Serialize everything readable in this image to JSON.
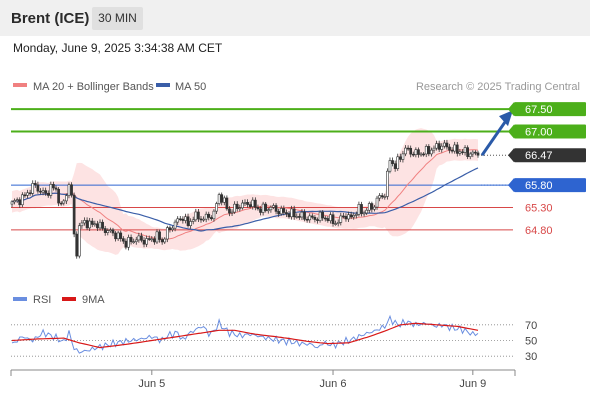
{
  "header": {
    "instrument": "Brent (ICE)",
    "timeframe": "30 MIN",
    "timestamp": "Monday, June 9, 2025 3:34:38 AM CET"
  },
  "colors": {
    "resistance": "#4caf1a",
    "pivot": "#2e64d0",
    "support": "#d84848",
    "current": "#333333",
    "ma50": "#3a5ea8",
    "ma20": "#f08080",
    "bollinger_fill": "#fde3e3",
    "rsi": "#6a8ee0",
    "rsi_ma": "#d81818",
    "up_candle": "#ffffff",
    "down_candle": "#333333",
    "arrow": "#2a5aa8"
  },
  "chart_data": [
    {
      "type": "candlestick",
      "legend": [
        {
          "label": "MA 20 + Bollinger Bands",
          "color": "#f08080"
        },
        {
          "label": "MA 50",
          "color": "#3a5ea8"
        }
      ],
      "legend_position": "top-left",
      "credit": "Research © 2025 Trading Central",
      "ylim": [
        63.5,
        67.75
      ],
      "x_ticks": [
        "Jun 5",
        "Jun 6",
        "Jun 9"
      ],
      "grid": false,
      "current_price": "66.47",
      "levels": [
        {
          "value": 67.5,
          "label": "67.50",
          "role": "resistance"
        },
        {
          "value": 67.0,
          "label": "67.00",
          "role": "resistance"
        },
        {
          "value": 65.8,
          "label": "65.80",
          "role": "pivot"
        },
        {
          "value": 65.3,
          "label": "65.30",
          "role": "support"
        },
        {
          "value": 64.8,
          "label": "64.80",
          "role": "support"
        }
      ],
      "forecast": {
        "from": 66.47,
        "to": 67.5
      },
      "anchors": [
        [
          0,
          65.4
        ],
        [
          4,
          65.5
        ],
        [
          7,
          65.7
        ],
        [
          9,
          65.8
        ],
        [
          11,
          65.65
        ],
        [
          13,
          65.6
        ],
        [
          15,
          65.75
        ],
        [
          17,
          65.7
        ],
        [
          19,
          65.3
        ],
        [
          21,
          65.6
        ],
        [
          22,
          65.85
        ],
        [
          23,
          65.5
        ],
        [
          24,
          64.7
        ],
        [
          25,
          64.3
        ],
        [
          26,
          64.85
        ],
        [
          28,
          65.0
        ],
        [
          30,
          64.9
        ],
        [
          32,
          64.95
        ],
        [
          36,
          64.8
        ],
        [
          40,
          64.7
        ],
        [
          44,
          64.5
        ],
        [
          48,
          64.6
        ],
        [
          52,
          64.55
        ],
        [
          56,
          64.65
        ],
        [
          58,
          64.55
        ],
        [
          60,
          64.75
        ],
        [
          62,
          64.9
        ],
        [
          64,
          65.0
        ],
        [
          66,
          65.1
        ],
        [
          68,
          64.9
        ],
        [
          70,
          65.1
        ],
        [
          74,
          65.05
        ],
        [
          78,
          65.15
        ],
        [
          80,
          65.6
        ],
        [
          82,
          65.4
        ],
        [
          84,
          65.2
        ],
        [
          88,
          65.35
        ],
        [
          92,
          65.4
        ],
        [
          96,
          65.25
        ],
        [
          100,
          65.3
        ],
        [
          104,
          65.2
        ],
        [
          108,
          65.15
        ],
        [
          112,
          65.1
        ],
        [
          116,
          65.05
        ],
        [
          120,
          65.1
        ],
        [
          124,
          65.0
        ],
        [
          126,
          64.95
        ],
        [
          128,
          65.15
        ],
        [
          130,
          65.05
        ],
        [
          132,
          65.15
        ],
        [
          134,
          65.25
        ],
        [
          136,
          65.2
        ],
        [
          138,
          65.3
        ],
        [
          140,
          65.35
        ],
        [
          142,
          65.55
        ],
        [
          144,
          65.6
        ],
        [
          146,
          66.4
        ],
        [
          148,
          66.2
        ],
        [
          150,
          66.45
        ],
        [
          152,
          66.6
        ],
        [
          156,
          66.5
        ],
        [
          160,
          66.55
        ],
        [
          164,
          66.65
        ],
        [
          166,
          66.7
        ],
        [
          170,
          66.6
        ],
        [
          174,
          66.55
        ],
        [
          178,
          66.5
        ],
        [
          180,
          66.47
        ]
      ]
    },
    {
      "type": "line",
      "legend": [
        {
          "label": "RSI",
          "color": "#6a8ee0"
        },
        {
          "label": "9MA",
          "color": "#d81818"
        }
      ],
      "legend_position": "top-left",
      "ylim": [
        20,
        80
      ],
      "y_ticks": [
        "70",
        "50",
        "30"
      ],
      "rsi_anchors": [
        [
          0,
          45
        ],
        [
          4,
          55
        ],
        [
          8,
          50
        ],
        [
          12,
          60
        ],
        [
          16,
          55
        ],
        [
          20,
          48
        ],
        [
          22,
          60
        ],
        [
          24,
          40
        ],
        [
          26,
          35
        ],
        [
          30,
          38
        ],
        [
          34,
          42
        ],
        [
          38,
          45
        ],
        [
          42,
          48
        ],
        [
          46,
          50
        ],
        [
          50,
          52
        ],
        [
          54,
          55
        ],
        [
          58,
          50
        ],
        [
          60,
          56
        ],
        [
          62,
          58
        ],
        [
          64,
          60
        ],
        [
          66,
          50
        ],
        [
          68,
          58
        ],
        [
          70,
          62
        ],
        [
          72,
          66
        ],
        [
          74,
          68
        ],
        [
          76,
          58
        ],
        [
          78,
          62
        ],
        [
          80,
          72
        ],
        [
          82,
          65
        ],
        [
          84,
          60
        ],
        [
          88,
          56
        ],
        [
          92,
          58
        ],
        [
          96,
          55
        ],
        [
          100,
          52
        ],
        [
          104,
          50
        ],
        [
          108,
          48
        ],
        [
          112,
          46
        ],
        [
          116,
          45
        ],
        [
          118,
          40
        ],
        [
          120,
          47
        ],
        [
          124,
          44
        ],
        [
          126,
          46
        ],
        [
          128,
          48
        ],
        [
          130,
          50
        ],
        [
          132,
          52
        ],
        [
          134,
          55
        ],
        [
          136,
          58
        ],
        [
          138,
          60
        ],
        [
          140,
          62
        ],
        [
          142,
          65
        ],
        [
          144,
          68
        ],
        [
          146,
          78
        ],
        [
          148,
          72
        ],
        [
          150,
          70
        ],
        [
          152,
          74
        ],
        [
          156,
          70
        ],
        [
          160,
          72
        ],
        [
          164,
          68
        ],
        [
          166,
          70
        ],
        [
          170,
          66
        ],
        [
          174,
          64
        ],
        [
          178,
          58
        ],
        [
          180,
          59
        ]
      ],
      "ma_anchors": [
        [
          0,
          50
        ],
        [
          10,
          52
        ],
        [
          20,
          53
        ],
        [
          26,
          47
        ],
        [
          34,
          41
        ],
        [
          44,
          45
        ],
        [
          54,
          50
        ],
        [
          62,
          54
        ],
        [
          70,
          58
        ],
        [
          76,
          61
        ],
        [
          80,
          63
        ],
        [
          86,
          63
        ],
        [
          94,
          58
        ],
        [
          104,
          54
        ],
        [
          114,
          49
        ],
        [
          122,
          46
        ],
        [
          130,
          47
        ],
        [
          138,
          55
        ],
        [
          144,
          62
        ],
        [
          150,
          70
        ],
        [
          156,
          72
        ],
        [
          164,
          70
        ],
        [
          172,
          68
        ],
        [
          180,
          63
        ]
      ]
    }
  ]
}
